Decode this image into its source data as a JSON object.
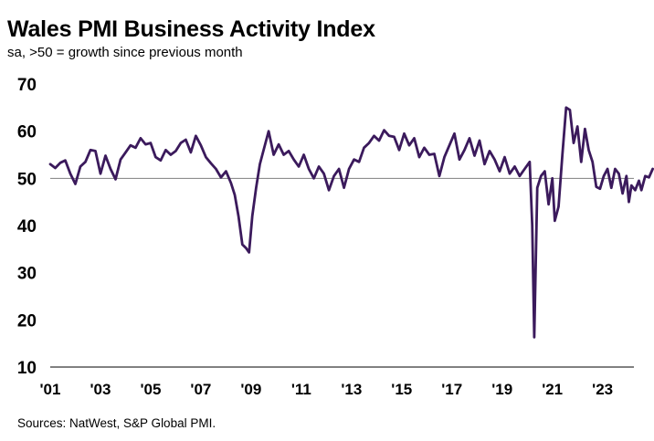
{
  "page": {
    "title": "Wales PMI Business Activity Index",
    "subtitle": "sa, >50 = growth  since previous month",
    "source": "Sources: NatWest, S&P Global PMI."
  },
  "chart_data": {
    "type": "line",
    "title": "Wales PMI Business Activity Index",
    "subtitle": "sa, >50 = growth  since previous month",
    "xlabel": "",
    "ylabel": "",
    "ylim": [
      10,
      70
    ],
    "xlim": [
      2001.0,
      2024.25
    ],
    "y_ticks": [
      "70",
      "60",
      "50",
      "40",
      "30",
      "20",
      "10"
    ],
    "x_ticks": [
      "'01",
      "'03",
      "'05",
      "'07",
      "'09",
      "'11",
      "'13",
      "'15",
      "'17",
      "'19",
      "'21",
      "'23"
    ],
    "reference_line": 50,
    "grid": false,
    "legend": "none",
    "line_color": "#3b1a5c",
    "series": [
      {
        "name": "",
        "points": [
          [
            2001.0,
            53.0
          ],
          [
            2001.2,
            52.2
          ],
          [
            2001.4,
            53.3
          ],
          [
            2001.6,
            53.8
          ],
          [
            2001.8,
            51.0
          ],
          [
            2002.0,
            48.8
          ],
          [
            2002.2,
            52.5
          ],
          [
            2002.4,
            53.5
          ],
          [
            2002.6,
            56.0
          ],
          [
            2002.8,
            55.8
          ],
          [
            2003.0,
            51.0
          ],
          [
            2003.2,
            54.8
          ],
          [
            2003.4,
            52.0
          ],
          [
            2003.6,
            49.8
          ],
          [
            2003.8,
            54.0
          ],
          [
            2004.0,
            55.5
          ],
          [
            2004.2,
            57.0
          ],
          [
            2004.4,
            56.5
          ],
          [
            2004.6,
            58.5
          ],
          [
            2004.8,
            57.2
          ],
          [
            2005.0,
            57.5
          ],
          [
            2005.2,
            54.5
          ],
          [
            2005.4,
            53.8
          ],
          [
            2005.6,
            56.0
          ],
          [
            2005.8,
            55.0
          ],
          [
            2006.0,
            55.8
          ],
          [
            2006.2,
            57.5
          ],
          [
            2006.4,
            58.2
          ],
          [
            2006.6,
            55.5
          ],
          [
            2006.8,
            59.0
          ],
          [
            2007.0,
            57.0
          ],
          [
            2007.2,
            54.5
          ],
          [
            2007.4,
            53.2
          ],
          [
            2007.6,
            52.0
          ],
          [
            2007.8,
            50.2
          ],
          [
            2008.0,
            51.5
          ],
          [
            2008.2,
            49.0
          ],
          [
            2008.35,
            46.5
          ],
          [
            2008.5,
            42.0
          ],
          [
            2008.65,
            36.0
          ],
          [
            2008.8,
            35.2
          ],
          [
            2008.92,
            34.3
          ],
          [
            2009.05,
            42.0
          ],
          [
            2009.2,
            48.0
          ],
          [
            2009.35,
            53.0
          ],
          [
            2009.5,
            56.0
          ],
          [
            2009.7,
            60.0
          ],
          [
            2009.9,
            55.0
          ],
          [
            2010.1,
            57.2
          ],
          [
            2010.3,
            55.0
          ],
          [
            2010.5,
            55.8
          ],
          [
            2010.7,
            54.0
          ],
          [
            2010.9,
            52.5
          ],
          [
            2011.1,
            55.0
          ],
          [
            2011.3,
            52.0
          ],
          [
            2011.5,
            50.0
          ],
          [
            2011.7,
            52.5
          ],
          [
            2011.9,
            51.0
          ],
          [
            2012.1,
            47.5
          ],
          [
            2012.3,
            50.5
          ],
          [
            2012.5,
            52.0
          ],
          [
            2012.7,
            48.0
          ],
          [
            2012.9,
            52.0
          ],
          [
            2013.1,
            54.0
          ],
          [
            2013.3,
            53.5
          ],
          [
            2013.5,
            56.5
          ],
          [
            2013.7,
            57.5
          ],
          [
            2013.9,
            59.0
          ],
          [
            2014.1,
            58.0
          ],
          [
            2014.3,
            60.2
          ],
          [
            2014.5,
            59.0
          ],
          [
            2014.7,
            58.8
          ],
          [
            2014.9,
            56.0
          ],
          [
            2015.1,
            59.5
          ],
          [
            2015.3,
            57.0
          ],
          [
            2015.5,
            58.5
          ],
          [
            2015.7,
            54.5
          ],
          [
            2015.9,
            56.5
          ],
          [
            2016.1,
            55.0
          ],
          [
            2016.3,
            55.2
          ],
          [
            2016.5,
            50.5
          ],
          [
            2016.7,
            54.5
          ],
          [
            2016.9,
            57.0
          ],
          [
            2017.1,
            59.5
          ],
          [
            2017.3,
            54.0
          ],
          [
            2017.5,
            56.0
          ],
          [
            2017.7,
            58.5
          ],
          [
            2017.9,
            54.8
          ],
          [
            2018.1,
            58.0
          ],
          [
            2018.3,
            53.0
          ],
          [
            2018.5,
            55.8
          ],
          [
            2018.7,
            54.0
          ],
          [
            2018.9,
            51.5
          ],
          [
            2019.1,
            54.5
          ],
          [
            2019.3,
            51.0
          ],
          [
            2019.5,
            52.5
          ],
          [
            2019.7,
            50.5
          ],
          [
            2019.9,
            52.0
          ],
          [
            2020.1,
            53.5
          ],
          [
            2020.2,
            40.0
          ],
          [
            2020.28,
            16.3
          ],
          [
            2020.4,
            48.0
          ],
          [
            2020.55,
            50.5
          ],
          [
            2020.7,
            51.5
          ],
          [
            2020.85,
            44.5
          ],
          [
            2021.0,
            50.0
          ],
          [
            2021.1,
            41.0
          ],
          [
            2021.25,
            44.0
          ],
          [
            2021.4,
            55.0
          ],
          [
            2021.55,
            65.0
          ],
          [
            2021.7,
            64.5
          ],
          [
            2021.85,
            57.5
          ],
          [
            2022.0,
            61.0
          ],
          [
            2022.15,
            53.5
          ],
          [
            2022.3,
            60.5
          ],
          [
            2022.45,
            56.0
          ],
          [
            2022.6,
            53.5
          ],
          [
            2022.75,
            48.2
          ],
          [
            2022.9,
            47.8
          ],
          [
            2023.05,
            50.5
          ],
          [
            2023.2,
            52.0
          ],
          [
            2023.35,
            48.0
          ],
          [
            2023.5,
            52.0
          ],
          [
            2023.65,
            51.0
          ],
          [
            2023.8,
            46.8
          ],
          [
            2023.95,
            50.5
          ],
          [
            2024.05,
            45.0
          ],
          [
            2024.15,
            48.5
          ],
          [
            2024.3,
            47.5
          ],
          [
            2024.45,
            49.5
          ],
          [
            2024.55,
            47.5
          ],
          [
            2024.7,
            50.5
          ],
          [
            2024.85,
            50.2
          ],
          [
            2025.0,
            52.0
          ]
        ]
      }
    ]
  }
}
